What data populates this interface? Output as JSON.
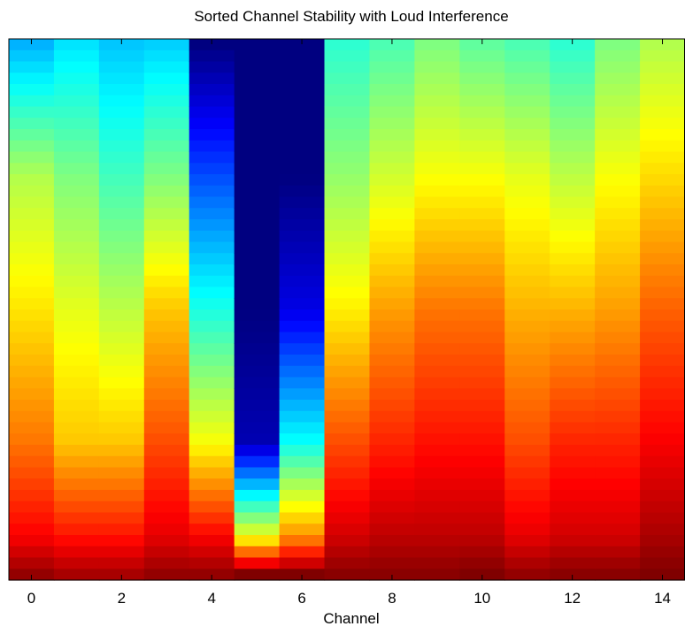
{
  "chart_data": {
    "type": "heatmap",
    "title": "Sorted Channel Stability with Loud Interference",
    "xlabel": "Channel",
    "ylabel": "",
    "colormap": "jet",
    "x_ticks": [
      "0",
      "2",
      "4",
      "6",
      "8",
      "10",
      "12",
      "14"
    ],
    "xlim": [
      -0.5,
      14.5
    ],
    "channels": [
      0,
      1,
      2,
      3,
      4,
      5,
      6,
      7,
      8,
      9,
      10,
      11,
      12,
      13,
      14
    ],
    "color_anchor_rows": [
      0,
      0.25,
      0.5,
      0.75,
      0.93,
      1.0
    ],
    "color_anchor_values": [
      [
        0.3,
        0.35,
        0.32,
        0.33,
        0.0,
        0.0,
        0.0,
        0.42,
        0.45,
        0.5,
        0.47,
        0.45,
        0.42,
        0.5,
        0.55
      ],
      [
        0.55,
        0.5,
        0.44,
        0.5,
        0.2,
        0.0,
        0.0,
        0.52,
        0.58,
        0.62,
        0.62,
        0.6,
        0.56,
        0.62,
        0.66
      ],
      [
        0.65,
        0.6,
        0.56,
        0.68,
        0.4,
        0.0,
        0.1,
        0.64,
        0.72,
        0.76,
        0.76,
        0.7,
        0.7,
        0.72,
        0.78
      ],
      [
        0.76,
        0.68,
        0.68,
        0.8,
        0.62,
        0.05,
        0.38,
        0.8,
        0.84,
        0.86,
        0.86,
        0.8,
        0.84,
        0.84,
        0.88
      ],
      [
        0.88,
        0.86,
        0.86,
        0.9,
        0.88,
        0.62,
        0.74,
        0.92,
        0.94,
        0.94,
        0.94,
        0.9,
        0.92,
        0.92,
        0.96
      ],
      [
        0.98,
        0.96,
        0.96,
        0.98,
        0.98,
        1.0,
        1.0,
        0.99,
        0.99,
        0.99,
        1.0,
        0.98,
        0.99,
        0.99,
        1.0
      ]
    ],
    "grid": false,
    "legend": "none"
  }
}
